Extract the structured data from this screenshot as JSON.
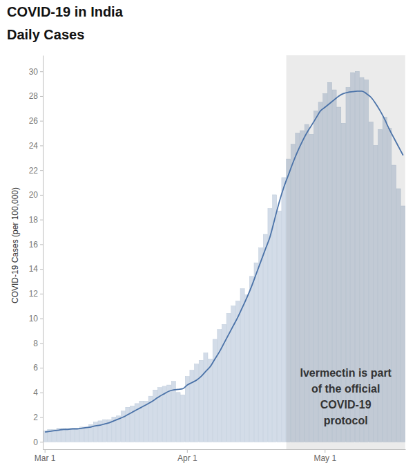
{
  "chart_data": {
    "type": "bar",
    "title": "COVID-19 in India",
    "subtitle": "Daily Cases",
    "y_label": "COVID-19 Cases (per 100,000)",
    "categories": [
      "Mar 1",
      null,
      null,
      null,
      null,
      null,
      null,
      null,
      null,
      null,
      null,
      null,
      null,
      null,
      null,
      null,
      null,
      null,
      null,
      null,
      null,
      null,
      null,
      null,
      null,
      null,
      null,
      null,
      null,
      null,
      null,
      "Apr 1",
      null,
      null,
      null,
      null,
      null,
      null,
      null,
      null,
      null,
      null,
      null,
      null,
      null,
      null,
      null,
      null,
      null,
      null,
      null,
      null,
      null,
      null,
      null,
      null,
      null,
      null,
      null,
      null,
      null,
      "May 1",
      null,
      null,
      null,
      null,
      null,
      null,
      null,
      null,
      null,
      null,
      null,
      null,
      null,
      null,
      null,
      null,
      null
    ],
    "series": [
      {
        "type": "bar",
        "color": "#d3dce8",
        "values": [
          0.9,
          1.0,
          1.0,
          1.1,
          1.1,
          1.1,
          1.1,
          1.1,
          1.2,
          1.2,
          1.4,
          1.6,
          1.7,
          1.8,
          1.8,
          2.0,
          2.1,
          2.5,
          2.8,
          2.9,
          3.1,
          3.3,
          3.3,
          3.7,
          4.2,
          4.4,
          4.5,
          4.6,
          4.9,
          4.0,
          3.8,
          5.3,
          5.8,
          6.3,
          6.6,
          7.2,
          6.7,
          8.3,
          9.1,
          9.5,
          10.4,
          11.0,
          11.4,
          12.4,
          11.9,
          13.4,
          14.5,
          15.7,
          16.8,
          18.9,
          20.0,
          18.7,
          21.4,
          22.9,
          24.1,
          25.0,
          25.2,
          25.7,
          24.9,
          26.8,
          27.5,
          28.2,
          29.1,
          28.5,
          27.1,
          25.8,
          28.7,
          29.9,
          30.0,
          29.5,
          29.3,
          25.9,
          24.0,
          25.3,
          26.3,
          25.4,
          22.4,
          20.5,
          19.1
        ]
      },
      {
        "type": "line",
        "color": "#4a72a8",
        "values": [
          0.8,
          0.85,
          0.9,
          0.95,
          1.0,
          1.0,
          1.05,
          1.05,
          1.1,
          1.15,
          1.2,
          1.3,
          1.35,
          1.45,
          1.55,
          1.7,
          1.85,
          2.0,
          2.2,
          2.4,
          2.6,
          2.8,
          3.0,
          3.2,
          3.45,
          3.7,
          3.9,
          4.1,
          4.2,
          4.25,
          4.3,
          4.6,
          4.8,
          5.0,
          5.3,
          5.7,
          6.1,
          6.7,
          7.3,
          8.0,
          8.7,
          9.4,
          10.1,
          10.9,
          11.7,
          12.6,
          13.6,
          14.6,
          15.6,
          16.6,
          18.0,
          19.4,
          20.6,
          21.6,
          22.6,
          23.5,
          24.3,
          25.0,
          25.6,
          26.2,
          26.8,
          27.1,
          27.4,
          27.7,
          28.0,
          28.2,
          28.3,
          28.35,
          28.4,
          28.4,
          28.2,
          27.9,
          27.4,
          26.8,
          26.1,
          25.3,
          24.6,
          23.9,
          23.2
        ]
      }
    ],
    "ylim": [
      -0.6,
      31.3
    ],
    "yticks": [
      0,
      2,
      4,
      6,
      8,
      10,
      12,
      14,
      16,
      18,
      20,
      22,
      24,
      26,
      28,
      30
    ],
    "grid": false,
    "annotations": [
      {
        "span": [
          53,
          78
        ],
        "text_lines": [
          "Ivermectin is part",
          "of the official",
          "COVID-19",
          "protocol"
        ]
      }
    ]
  }
}
